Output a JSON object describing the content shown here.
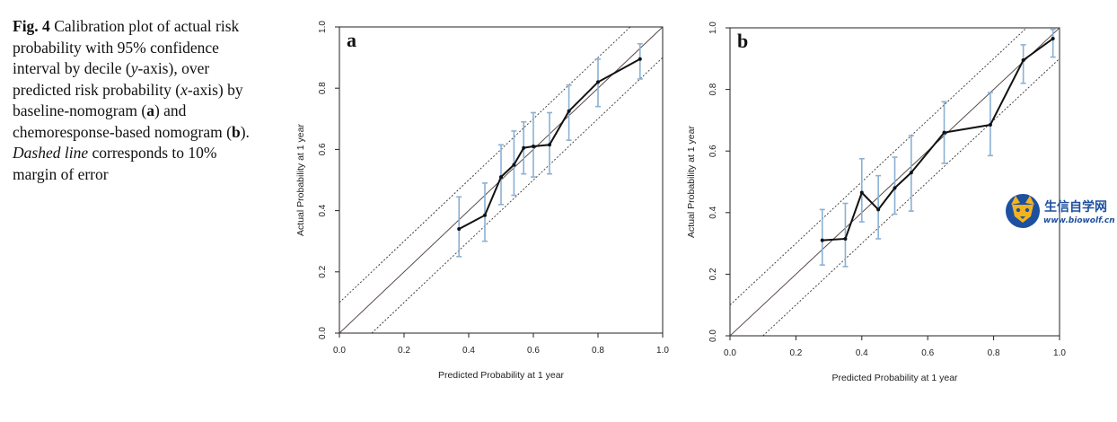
{
  "caption": {
    "fig_label": "Fig. 4",
    "p1": "  Calibration plot of actual risk probability with 95% confidence interval by decile (",
    "y_var": "y",
    "p2": "-axis), over predicted risk probability (",
    "x_var": "x",
    "p3": "-axis) by baseline-nomogram (",
    "a_ref": "a",
    "p4": ") and chemoresponse-based nomogram (",
    "b_ref": "b",
    "p5": "). ",
    "dashed": "Dashed line",
    "p6": " corresponds to 10% margin of error"
  },
  "watermark": {
    "name": "生信自学网",
    "url": "www.biowolf.cn"
  },
  "colors": {
    "errorbar": "#8bb0d4",
    "calibration_line": "#111111",
    "reference_line": "#5a4a4a",
    "dashed_line": "#333333"
  },
  "chart_data": [
    {
      "type": "line",
      "panel_label": "a",
      "xlabel": "Predicted Probability at 1 year",
      "ylabel": "Actual Probability at 1 year",
      "xlim": [
        0,
        1
      ],
      "ylim": [
        0,
        1
      ],
      "x_ticks": [
        "0.0",
        "0.2",
        "0.4",
        "0.6",
        "0.8",
        "1.0"
      ],
      "y_ticks": [
        "0.0",
        "0.2",
        "0.4",
        "0.6",
        "0.8",
        "1.0"
      ],
      "reference_lines": [
        "y = x",
        "y = x + 0.1",
        "y = x - 0.1"
      ],
      "grid": false,
      "series": [
        {
          "x": [
            0.37,
            0.45,
            0.5,
            0.54,
            0.57,
            0.6,
            0.65,
            0.71,
            0.8,
            0.93
          ],
          "y": [
            0.34,
            0.385,
            0.51,
            0.55,
            0.605,
            0.61,
            0.615,
            0.725,
            0.82,
            0.895
          ],
          "y_lower": [
            0.25,
            0.3,
            0.42,
            0.45,
            0.52,
            0.51,
            0.52,
            0.63,
            0.74,
            0.83
          ],
          "y_upper": [
            0.445,
            0.49,
            0.615,
            0.66,
            0.69,
            0.72,
            0.72,
            0.81,
            0.895,
            0.945
          ]
        }
      ]
    },
    {
      "type": "line",
      "panel_label": "b",
      "xlabel": "Predicted Probability at 1 year",
      "ylabel": "Actual Probability at 1 year",
      "xlim": [
        0,
        1
      ],
      "ylim": [
        0,
        1
      ],
      "x_ticks": [
        "0.0",
        "0.2",
        "0.4",
        "0.6",
        "0.8",
        "1.0"
      ],
      "y_ticks": [
        "0.0",
        "0.2",
        "0.4",
        "0.6",
        "0.8",
        "1.0"
      ],
      "reference_lines": [
        "y = x",
        "y = x + 0.1",
        "y = x - 0.1"
      ],
      "grid": false,
      "series": [
        {
          "x": [
            0.28,
            0.35,
            0.4,
            0.45,
            0.5,
            0.55,
            0.65,
            0.79,
            0.89,
            0.98
          ],
          "y": [
            0.31,
            0.315,
            0.465,
            0.41,
            0.48,
            0.53,
            0.66,
            0.685,
            0.895,
            0.965
          ],
          "y_lower": [
            0.23,
            0.225,
            0.37,
            0.315,
            0.395,
            0.405,
            0.56,
            0.585,
            0.82,
            0.905
          ],
          "y_upper": [
            0.41,
            0.43,
            0.575,
            0.52,
            0.58,
            0.65,
            0.76,
            0.79,
            0.945,
            0.995
          ]
        }
      ]
    }
  ]
}
